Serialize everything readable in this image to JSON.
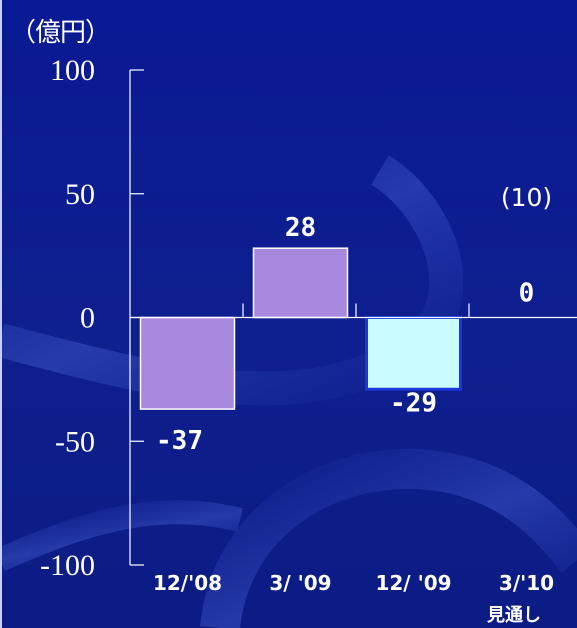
{
  "unit_label": "（億円）",
  "x_note": "見通し",
  "colors": {
    "background": "#0c1b8c",
    "axis": "#ffffff",
    "bar_positive": "#a788de",
    "bar_negative": "#c9fbff",
    "bar_negative_border": "#1c37d8",
    "bar_border": "#ffffff"
  },
  "chart_data": {
    "type": "bar",
    "title": "",
    "xlabel": "",
    "ylabel": "（億円）",
    "categories": [
      "12/'08",
      "3/ '09",
      "12/ '09",
      "3/'10"
    ],
    "values": [
      -37,
      28,
      -29,
      0
    ],
    "data_labels": [
      "-37",
      "28",
      "-29",
      "0"
    ],
    "annotations": [
      {
        "category": "3/'10",
        "text": "(10)"
      }
    ],
    "yticks": [
      100,
      50,
      0,
      -50,
      -100
    ],
    "ylim": [
      -100,
      100
    ],
    "grid": false
  }
}
